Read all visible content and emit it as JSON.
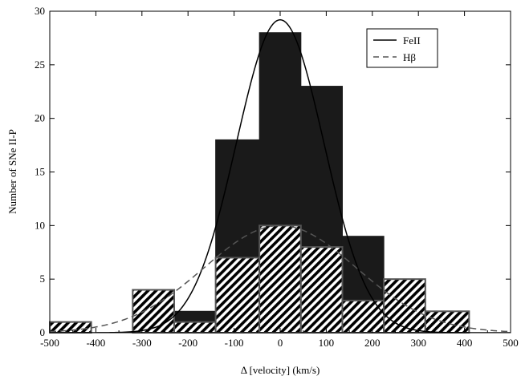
{
  "chart_data": {
    "type": "bar",
    "xlabel": "Δ [velocity] (km/s)",
    "ylabel": "Number of SNe II-P",
    "xlim": [
      -500,
      500
    ],
    "ylim": [
      0,
      30
    ],
    "x_ticks": [
      -500,
      -400,
      -300,
      -200,
      -100,
      0,
      100,
      200,
      300,
      400,
      500
    ],
    "y_ticks": [
      0,
      5,
      10,
      15,
      20,
      25,
      30
    ],
    "legend_position": "top-right",
    "grid": false,
    "histograms": [
      {
        "name": "FeII",
        "style": "solid",
        "color": "#1a1a1a",
        "bins": [
          {
            "x0": -500,
            "x1": -410,
            "count": 1
          },
          {
            "x0": -410,
            "x1": -320,
            "count": 0
          },
          {
            "x0": -320,
            "x1": -230,
            "count": 4
          },
          {
            "x0": -230,
            "x1": -140,
            "count": 2
          },
          {
            "x0": -140,
            "x1": -45,
            "count": 18
          },
          {
            "x0": -45,
            "x1": 45,
            "count": 28
          },
          {
            "x0": 45,
            "x1": 135,
            "count": 23
          },
          {
            "x0": 135,
            "x1": 225,
            "count": 9
          },
          {
            "x0": 225,
            "x1": 315,
            "count": 5
          },
          {
            "x0": 315,
            "x1": 410,
            "count": 2
          }
        ]
      },
      {
        "name": "Hβ",
        "style": "hatched",
        "color": "#000000",
        "bins": [
          {
            "x0": -500,
            "x1": -410,
            "count": 1
          },
          {
            "x0": -410,
            "x1": -320,
            "count": 0
          },
          {
            "x0": -320,
            "x1": -230,
            "count": 4
          },
          {
            "x0": -230,
            "x1": -140,
            "count": 1
          },
          {
            "x0": -140,
            "x1": -45,
            "count": 7
          },
          {
            "x0": -45,
            "x1": 45,
            "count": 10
          },
          {
            "x0": 45,
            "x1": 135,
            "count": 8
          },
          {
            "x0": 135,
            "x1": 225,
            "count": 3
          },
          {
            "x0": 225,
            "x1": 315,
            "count": 5
          },
          {
            "x0": 315,
            "x1": 410,
            "count": 2
          }
        ]
      }
    ],
    "fits": [
      {
        "name": "FeII",
        "line": "solid",
        "color": "#000000",
        "amplitude": 29.2,
        "mean": 0,
        "sigma": 95
      },
      {
        "name": "Hβ",
        "line": "dashed",
        "color": "#555555",
        "amplitude": 10,
        "mean": 0,
        "sigma": 165
      }
    ]
  }
}
